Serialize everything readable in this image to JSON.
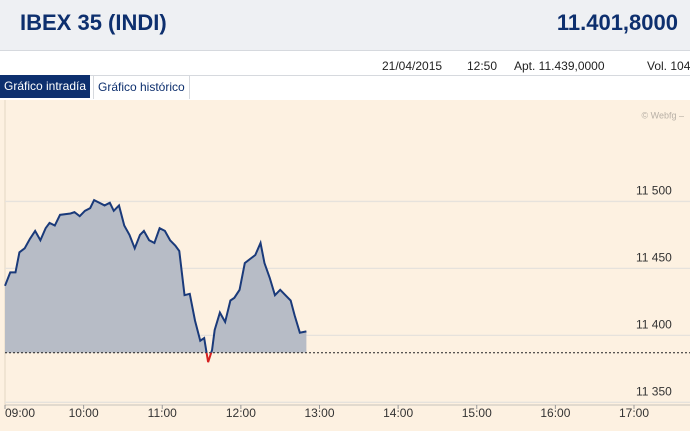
{
  "header": {
    "title": "IBEX 35 (INDI)",
    "price": "11.401,8000"
  },
  "info": {
    "date": "21/04/2015",
    "time": "12:50",
    "apt": "Apt. 11.439,0000",
    "vol": "Vol. 104"
  },
  "tabs": [
    "Gráfico intradía",
    "Gráfico histórico"
  ],
  "watermark": "© Webfg –",
  "chart_data": {
    "type": "area",
    "x": [
      "09:00",
      "09:04",
      "09:08",
      "09:11",
      "09:15",
      "09:19",
      "09:23",
      "09:27",
      "09:31",
      "09:34",
      "09:38",
      "09:42",
      "09:50",
      "09:53",
      "09:57",
      "10:01",
      "10:05",
      "10:08",
      "10:12",
      "10:16",
      "10:20",
      "10:23",
      "10:27",
      "10:31",
      "10:35",
      "10:39",
      "10:43",
      "10:46",
      "10:50",
      "10:54",
      "10:58",
      "11:02",
      "11:06",
      "11:10",
      "11:13",
      "11:17",
      "11:21",
      "11:25",
      "11:29",
      "11:32",
      "11:35",
      "11:38",
      "11:40",
      "11:44",
      "11:48",
      "11:52",
      "11:55",
      "11:59",
      "12:03",
      "12:07",
      "12:11",
      "12:15",
      "12:18",
      "12:22",
      "12:26",
      "12:30",
      "12:34",
      "12:38",
      "12:41",
      "12:45",
      "12:50"
    ],
    "values": [
      11437,
      11447,
      11447,
      11462,
      11465,
      11472,
      11478,
      11471,
      11480,
      11484,
      11482,
      11490,
      11491,
      11492,
      11489,
      11493,
      11495,
      11501,
      11499,
      11497,
      11499,
      11493,
      11497,
      11482,
      11475,
      11465,
      11475,
      11478,
      11471,
      11469,
      11480,
      11478,
      11471,
      11467,
      11463,
      11430,
      11431,
      11411,
      11396,
      11398,
      11380,
      11389,
      11404,
      11417,
      11410,
      11426,
      11428,
      11434,
      11454,
      11457,
      11460,
      11469,
      11454,
      11443,
      11430,
      11434,
      11430,
      11426,
      11415,
      11402,
      11403
    ],
    "reference": 11387,
    "color": "#1a3a7a",
    "fill": "#b7bcc6",
    "below_color": "#d42020",
    "xlim": [
      "09:00",
      "17:00"
    ],
    "xticks": [
      "09:00",
      "10:00",
      "11:00",
      "12:00",
      "13:00",
      "14:00",
      "15:00",
      "16:00",
      "17:00"
    ],
    "ylim": [
      11348,
      11572
    ],
    "yticks": [
      {
        "value": 11350,
        "label": "11 350"
      },
      {
        "value": 11400,
        "label": "11 400"
      },
      {
        "value": 11450,
        "label": "11 450"
      },
      {
        "value": 11500,
        "label": "11 500"
      }
    ],
    "grid": true
  }
}
